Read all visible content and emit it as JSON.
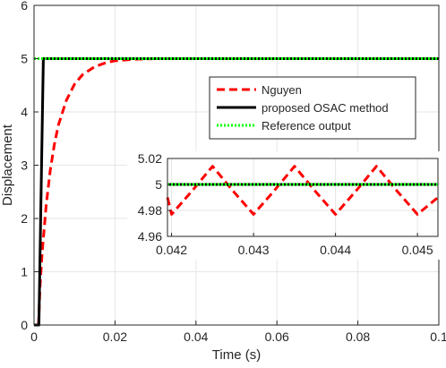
{
  "chart_data": {
    "type": "line",
    "xlabel": "Time (s)",
    "ylabel": "Displacement",
    "xlim": [
      0,
      0.1
    ],
    "ylim": [
      0,
      6
    ],
    "xticks": [
      0,
      0.02,
      0.04,
      0.06,
      0.08,
      0.1
    ],
    "xtick_labels": [
      "0",
      "0.02",
      "0.04",
      "0.06",
      "0.08",
      "0.1"
    ],
    "yticks": [
      0,
      1,
      2,
      3,
      4,
      5,
      6
    ],
    "ytick_labels": [
      "0",
      "1",
      "2",
      "3",
      "4",
      "5",
      "6"
    ],
    "grid": true,
    "legend_position": "center-right",
    "series": [
      {
        "name": "Nguyen",
        "color": "#ff0000",
        "style": "dashed",
        "x": [
          0.0011,
          0.0015,
          0.002,
          0.003,
          0.004,
          0.005,
          0.006,
          0.008,
          0.01,
          0.012,
          0.015,
          0.018,
          0.02,
          0.025,
          0.03,
          0.035,
          0.04,
          0.05,
          0.06,
          0.07,
          0.08,
          0.09,
          0.1
        ],
        "y": [
          0.0,
          0.75,
          1.35,
          2.25,
          2.9,
          3.38,
          3.75,
          4.22,
          4.52,
          4.7,
          4.85,
          4.93,
          4.96,
          4.99,
          5.0,
          5.0,
          5.0,
          5.0,
          5.0,
          5.0,
          5.0,
          5.0,
          5.0
        ]
      },
      {
        "name": "proposed OSAC method",
        "color": "#000000",
        "style": "solid",
        "x": [
          0.0,
          0.0012,
          0.0023,
          0.01,
          0.03,
          0.05,
          0.07,
          0.1
        ],
        "y": [
          0.0,
          0.0,
          5.0,
          5.0,
          5.0,
          5.0,
          5.0,
          5.0
        ]
      },
      {
        "name": "Reference output",
        "color": "#00ff00",
        "style": "dotted",
        "x": [
          0.0,
          0.1
        ],
        "y": [
          5.0,
          5.0
        ]
      }
    ],
    "inset": {
      "xlim": [
        0.04195,
        0.04525
      ],
      "ylim": [
        4.96,
        5.02
      ],
      "xticks": [
        0.042,
        0.043,
        0.044,
        0.045
      ],
      "xtick_labels": [
        "0.042",
        "0.043",
        "0.044",
        "0.045"
      ],
      "yticks": [
        4.96,
        4.98,
        5.0,
        5.02
      ],
      "ytick_labels": [
        "4.96",
        "4.98",
        "5",
        "5.02"
      ],
      "series": [
        {
          "name": "Nguyen",
          "color": "#ff0000",
          "style": "dashed",
          "x": [
            0.04195,
            0.042,
            0.04225,
            0.0425,
            0.04275,
            0.043,
            0.04325,
            0.0435,
            0.04375,
            0.044,
            0.04425,
            0.0445,
            0.04475,
            0.045,
            0.04525
          ],
          "y": [
            4.99,
            4.977,
            4.995,
            5.014,
            4.995,
            4.977,
            4.995,
            5.014,
            4.995,
            4.977,
            4.995,
            5.014,
            4.995,
            4.977,
            4.99
          ]
        },
        {
          "name": "proposed OSAC method",
          "color": "#000000",
          "style": "solid",
          "x": [
            0.04195,
            0.04525
          ],
          "y": [
            5.0,
            5.0
          ]
        },
        {
          "name": "Reference output",
          "color": "#00ff00",
          "style": "dotted",
          "x": [
            0.04195,
            0.04525
          ],
          "y": [
            5.0,
            5.0
          ]
        }
      ]
    }
  }
}
